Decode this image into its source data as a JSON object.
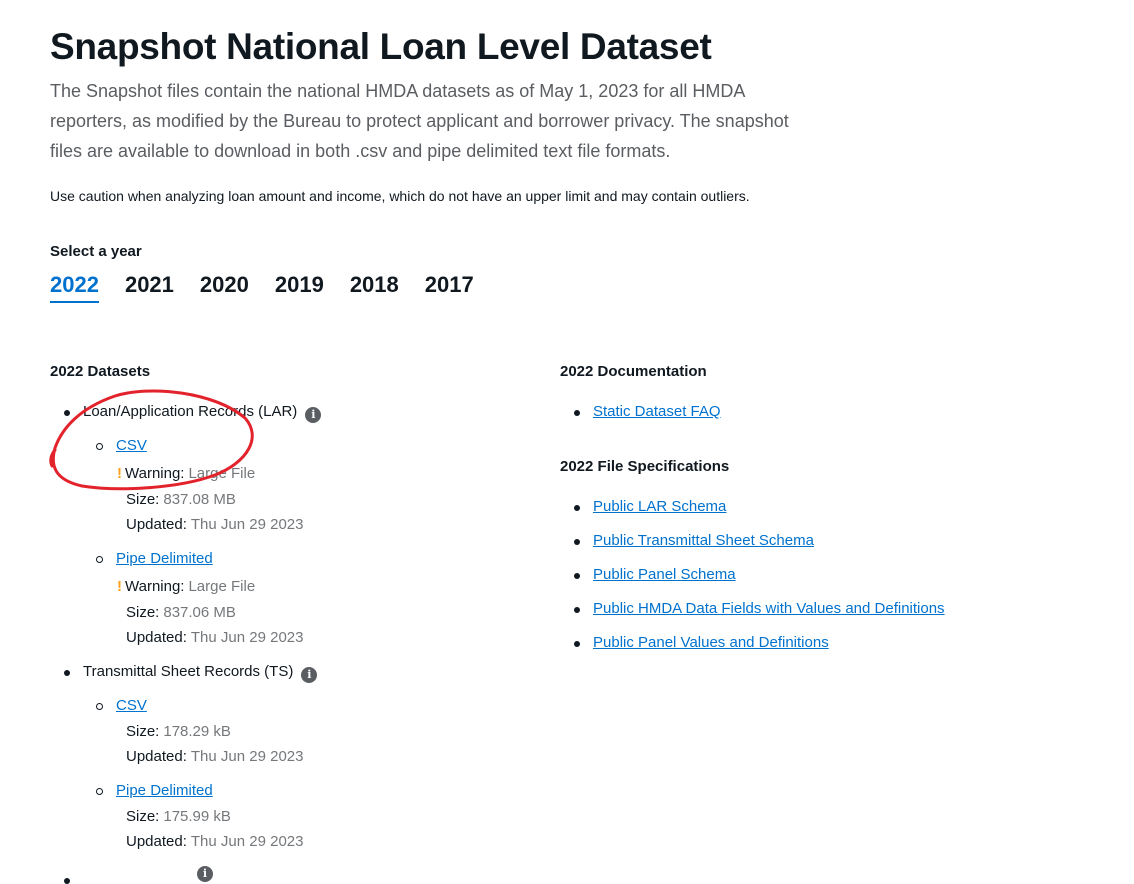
{
  "page": {
    "title": "Snapshot National Loan Level Dataset",
    "intro": "The Snapshot files contain the national HMDA datasets as of May 1, 2023 for all HMDA reporters, as modified by the Bureau to protect applicant and borrower privacy. The snapshot files are available to download in both .csv and pipe delimited text file formats.",
    "caution": "Use caution when analyzing loan amount and income, which do not have an upper limit and may contain outliers."
  },
  "year_select": {
    "label": "Select a year",
    "years": [
      "2022",
      "2021",
      "2020",
      "2019",
      "2018",
      "2017"
    ],
    "selected": "2022"
  },
  "datasets": {
    "heading": "2022 Datasets",
    "labels": {
      "warning": "Warning:",
      "size": "Size:",
      "updated": "Updated:"
    },
    "lar": {
      "name": "Loan/Application Records (LAR)",
      "csv": {
        "label": "CSV",
        "warning": "Large File",
        "size": "837.08 MB",
        "updated": "Thu Jun 29 2023"
      },
      "pipe": {
        "label": "Pipe Delimited",
        "warning": "Large File",
        "size": "837.06 MB",
        "updated": "Thu Jun 29 2023"
      }
    },
    "ts": {
      "name": "Transmittal Sheet Records (TS)",
      "csv": {
        "label": "CSV",
        "size": "178.29 kB",
        "updated": "Thu Jun 29 2023"
      },
      "pipe": {
        "label": "Pipe Delimited",
        "size": "175.99 kB",
        "updated": "Thu Jun 29 2023"
      }
    }
  },
  "documentation": {
    "heading": "2022 Documentation",
    "links": [
      "Static Dataset FAQ"
    ]
  },
  "file_specs": {
    "heading": "2022 File Specifications",
    "links": [
      "Public LAR Schema",
      "Public Transmittal Sheet Schema",
      "Public Panel Schema",
      "Public HMDA Data Fields with Values and Definitions",
      "Public Panel Values and Definitions"
    ]
  },
  "colors": {
    "link": "#0072ce",
    "warning": "#ff9e1b",
    "annotation": "#e3232c"
  }
}
